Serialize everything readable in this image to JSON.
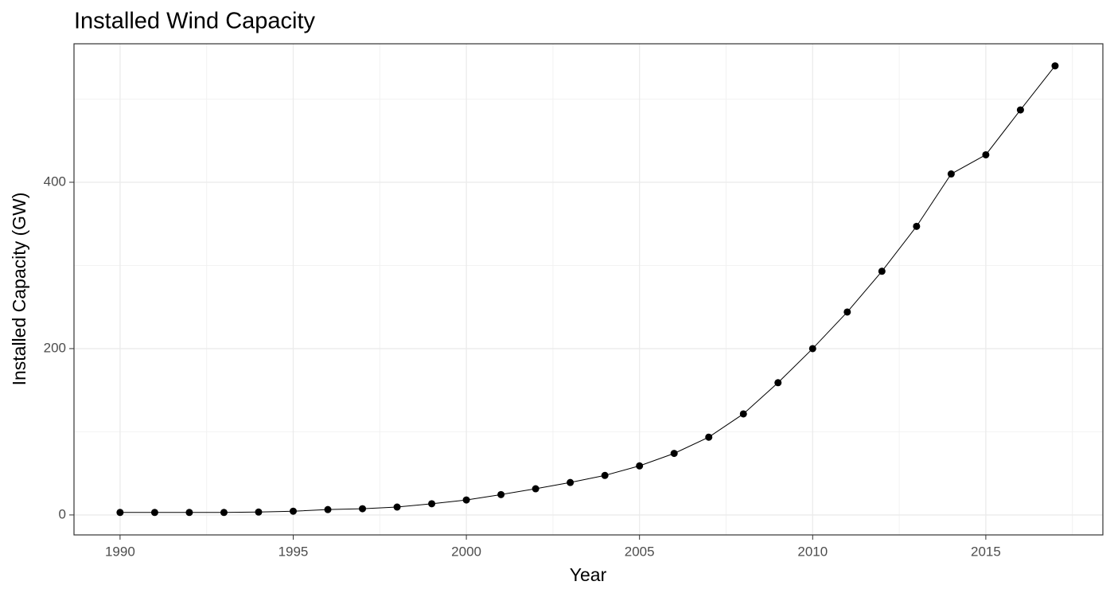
{
  "chart_data": {
    "type": "line",
    "title": "Installed Wind Capacity",
    "x_label": "Year",
    "y_label": "Installed Capacity (GW)",
    "x": [
      1990,
      1991,
      1992,
      1993,
      1994,
      1995,
      1996,
      1997,
      1998,
      1999,
      2000,
      2001,
      2002,
      2003,
      2004,
      2005,
      2006,
      2007,
      2008,
      2009,
      2010,
      2011,
      2012,
      2013,
      2014,
      2015,
      2016,
      2017
    ],
    "series": [
      {
        "name": "Installed Capacity",
        "color": "#000000",
        "values": [
          3,
          3,
          3,
          3,
          3.5,
          4.5,
          6.5,
          7.5,
          9.5,
          13.5,
          18,
          24.5,
          31.5,
          39,
          47.5,
          59,
          74,
          93.5,
          121.5,
          159,
          200,
          244,
          293,
          347,
          410,
          433,
          487,
          540
        ]
      }
    ],
    "xlim": [
      1988.67,
      2018.38
    ],
    "ylim": [
      -24,
      566.5
    ],
    "xticks": [
      1990,
      1995,
      2000,
      2005,
      2010,
      2015
    ],
    "yticks": [
      0,
      200,
      400
    ],
    "grid": true
  }
}
